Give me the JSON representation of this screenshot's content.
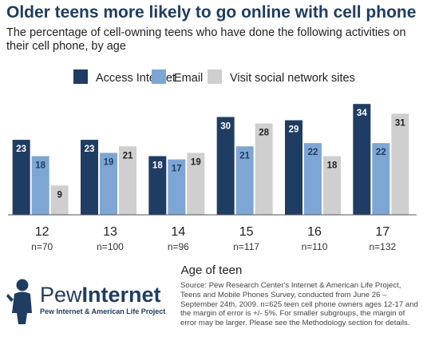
{
  "header": {
    "title": "Older teens more likely to go online with cell phone",
    "subtitle": "The percentage of cell-owning teens who have done the following activities on their cell phone, by age"
  },
  "chart_data": {
    "type": "bar",
    "title": "Older teens more likely to go online with cell phone",
    "subtitle": "The percentage of cell-owning teens who have done the following activities on their cell phone, by age",
    "xlabel": "Age of teen",
    "ylabel": "",
    "categories": [
      "12",
      "13",
      "14",
      "15",
      "16",
      "17"
    ],
    "sample_sizes": [
      "n=70",
      "n=100",
      "n=96",
      "n=117",
      "n=110",
      "n=132"
    ],
    "ylim": [
      0,
      36
    ],
    "grid": false,
    "legend_position": "top",
    "series": [
      {
        "name": "Access Internet",
        "color": "#1f3d63",
        "label_color": "#ffffff",
        "values": [
          23,
          23,
          18,
          30,
          29,
          34
        ]
      },
      {
        "name": "Email",
        "color": "#7ea6d4",
        "label_color": "#1f3d63",
        "values": [
          18,
          19,
          17,
          21,
          22,
          22
        ]
      },
      {
        "name": "Visit social network sites",
        "color": "#cfcfcf",
        "label_color": "#222222",
        "values": [
          9,
          21,
          19,
          28,
          18,
          31
        ]
      }
    ]
  },
  "footer": {
    "logo_pew": "Pew",
    "logo_internet": "Internet",
    "logo_sub": "Pew Internet & American Life Project",
    "source": "Source: Pew Research Center's Internet & American Life Project, Teens and Mobile Phones Survey, conducted from June 26 – September 24th, 2009. n=625 teen cell phone owners ages 12-17 and the margin of error is +/- 5%. For smaller subgroups, the margin of error may be larger. Please see the Methodology section for details."
  }
}
